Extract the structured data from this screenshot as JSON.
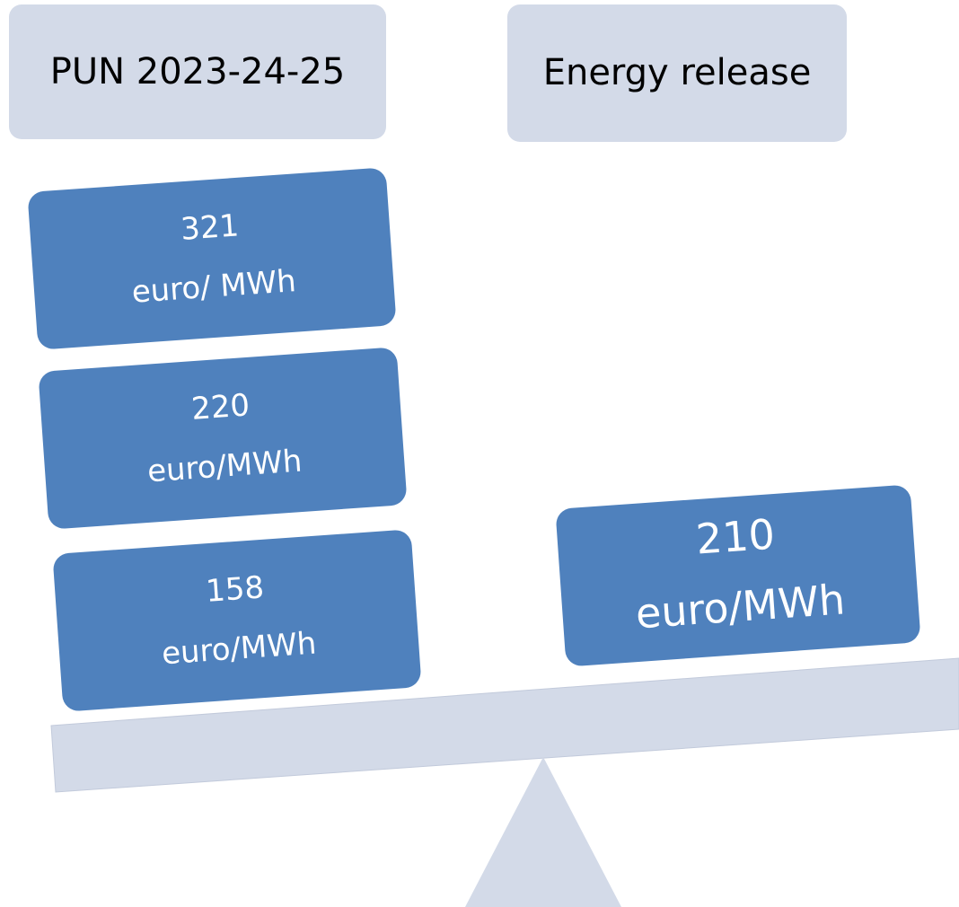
{
  "headers": [
    "PUN 2023-24-25",
    "Energy release"
  ],
  "left_boxes": [
    {
      "value": "321",
      "unit": "euro/ MWh"
    },
    {
      "value": "220",
      "unit": "euro/MWh"
    },
    {
      "value": "158",
      "unit": "euro/MWh"
    }
  ],
  "right_boxes": [
    {
      "value": "210",
      "unit": "euro/MWh"
    }
  ]
}
